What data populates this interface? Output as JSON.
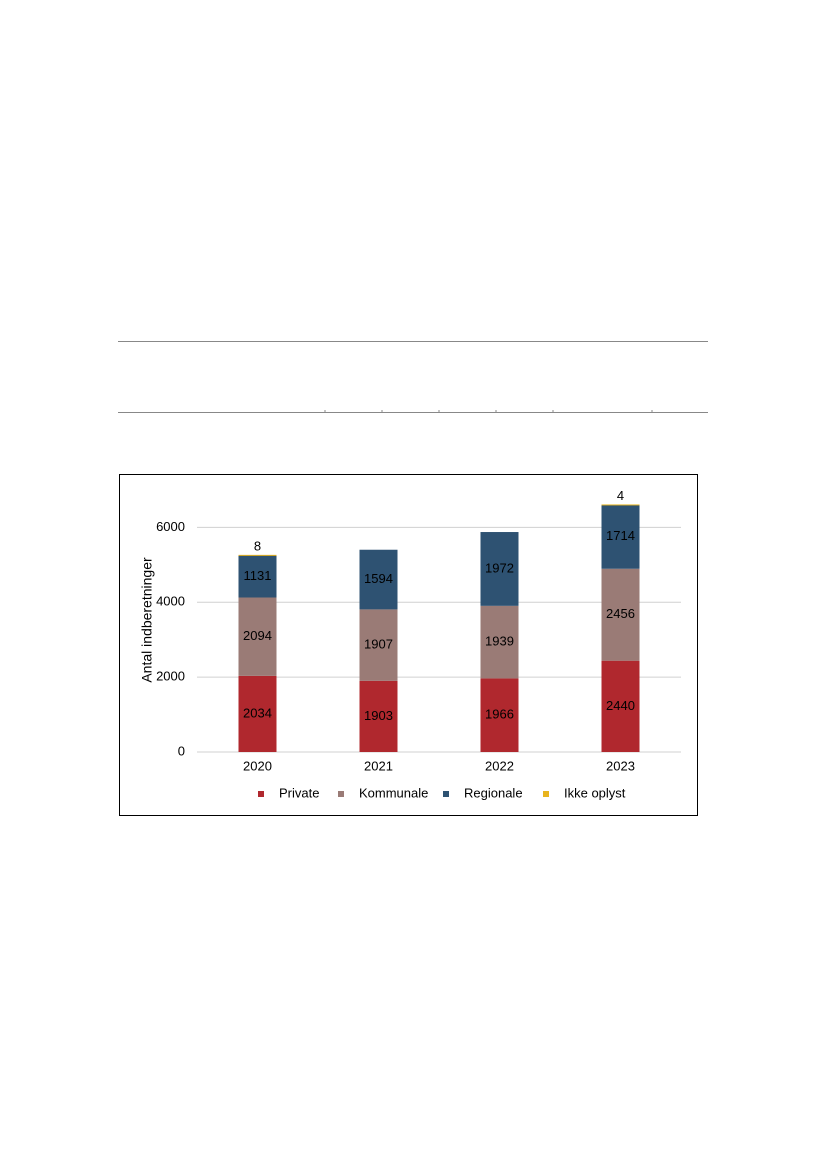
{
  "chart_data": {
    "type": "stacked-bar",
    "y_label": "Antal indberetninger",
    "categories": [
      "2020",
      "2021",
      "2022",
      "2023"
    ],
    "series": [
      {
        "name": "Private",
        "color": "#b0282e",
        "values": [
          2034,
          1903,
          1966,
          2440
        ]
      },
      {
        "name": "Kommunale",
        "color": "#9a7b76",
        "values": [
          2094,
          1907,
          1939,
          2456
        ]
      },
      {
        "name": "Regionale",
        "color": "#2e5272",
        "values": [
          1131,
          1594,
          1972,
          1714
        ]
      },
      {
        "name": "Ikke oplyst",
        "color": "#e8b41e",
        "values": [
          8,
          null,
          null,
          4
        ]
      }
    ],
    "ylim": [
      0,
      7000
    ],
    "yticks": [
      0,
      2000,
      4000,
      6000
    ],
    "grid": true,
    "legend": "bottom"
  }
}
